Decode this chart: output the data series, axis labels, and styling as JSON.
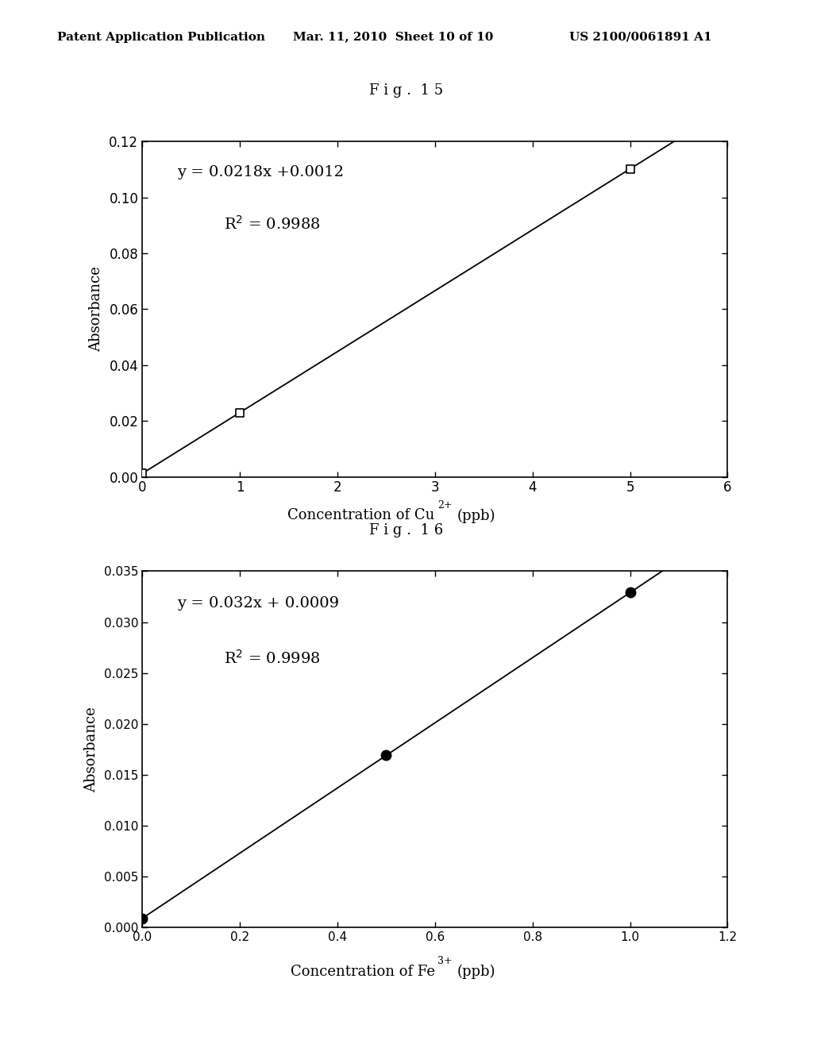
{
  "header_left": "Patent Application Publication",
  "header_mid": "Mar. 11, 2010  Sheet 10 of 10",
  "header_right": "US 2100/0061891 A1",
  "fig15_title": "F i g .  1 5",
  "fig16_title": "F i g .  1 6",
  "fig15": {
    "data_x": [
      0,
      1,
      5
    ],
    "data_y": [
      0.0012,
      0.023,
      0.1102
    ],
    "slope": 0.0218,
    "intercept": 0.0012,
    "r2": 0.9988,
    "equation": "y = 0.0218x +0.0012",
    "r2_text": "R$^2$ = 0.9988",
    "xlim": [
      0,
      6
    ],
    "ylim": [
      0,
      0.12
    ],
    "xticks": [
      0,
      1,
      2,
      3,
      4,
      5,
      6
    ],
    "yticks": [
      0,
      0.02,
      0.04,
      0.06,
      0.08,
      0.1,
      0.12
    ],
    "xlabel_base": "Concentration of Cu",
    "xlabel_sup": "2+",
    "xlabel_end": "(ppb)",
    "ylabel": "Absorbance",
    "marker": "s",
    "marker_size": 7,
    "line_color": "#000000"
  },
  "fig16": {
    "data_x": [
      0,
      0.5,
      1.0
    ],
    "data_y": [
      0.0009,
      0.0169,
      0.0329
    ],
    "slope": 0.032,
    "intercept": 0.0009,
    "r2": 0.9998,
    "equation": "y = 0.032x + 0.0009",
    "r2_text": "R$^2$ = 0.9998",
    "xlim": [
      0,
      1.2
    ],
    "ylim": [
      0,
      0.035
    ],
    "xticks": [
      0,
      0.2,
      0.4,
      0.6,
      0.8,
      1.0,
      1.2
    ],
    "yticks": [
      0,
      0.005,
      0.01,
      0.015,
      0.02,
      0.025,
      0.03,
      0.035
    ],
    "xlabel_base": "Concentration of Fe",
    "xlabel_sup": "3+",
    "xlabel_end": "(ppb)",
    "ylabel": "Absorbance",
    "marker": "o",
    "marker_size": 9,
    "line_color": "#000000"
  },
  "background_color": "#ffffff",
  "text_color": "#000000"
}
